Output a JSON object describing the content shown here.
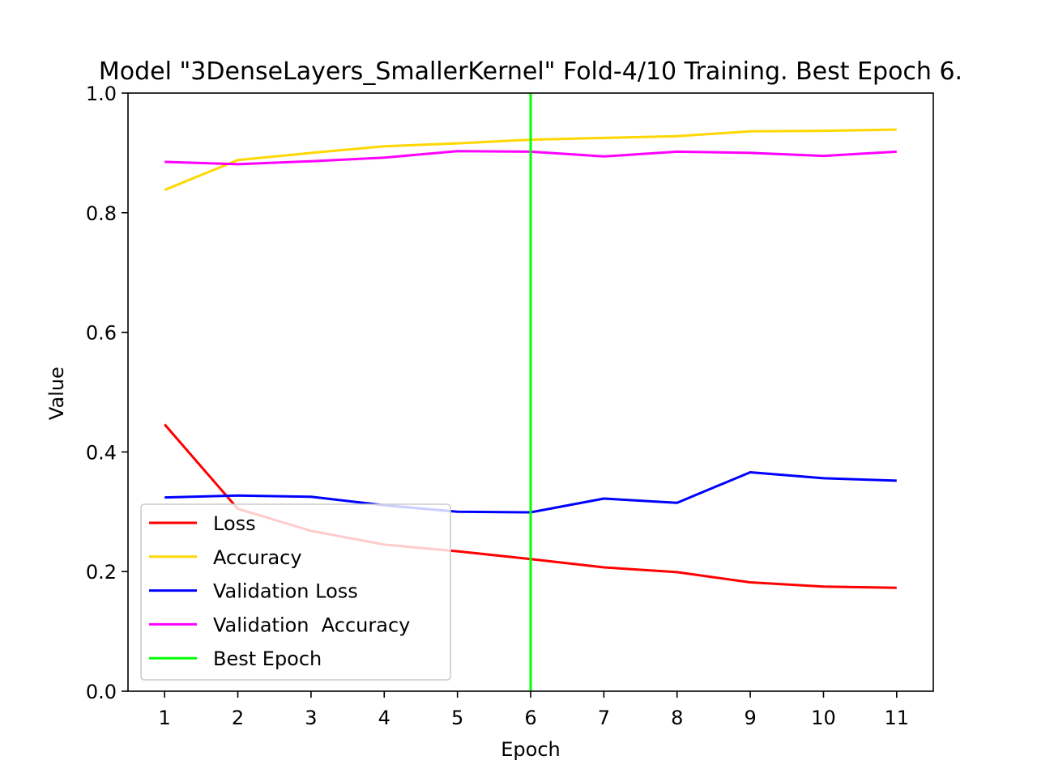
{
  "chart_data": {
    "type": "line",
    "title": "Model \"3DenseLayers_SmallerKernel\" Fold-4/10 Training. Best Epoch 6.",
    "xlabel": "Epoch",
    "ylabel": "Value",
    "x": [
      1,
      2,
      3,
      4,
      5,
      6,
      7,
      8,
      9,
      10,
      11
    ],
    "xticks": [
      "1",
      "2",
      "3",
      "4",
      "5",
      "6",
      "7",
      "8",
      "9",
      "10",
      "11"
    ],
    "xlim": [
      0.5,
      11.5
    ],
    "ylim": [
      0.0,
      1.0
    ],
    "yticks": [
      "0.0",
      "0.2",
      "0.4",
      "0.6",
      "0.8",
      "1.0"
    ],
    "grid": false,
    "legend_position": "lower-left",
    "series": [
      {
        "name": "Loss",
        "color": "#ff0000",
        "values": [
          0.446,
          0.305,
          0.268,
          0.245,
          0.234,
          0.221,
          0.207,
          0.199,
          0.182,
          0.175,
          0.173
        ]
      },
      {
        "name": "Accuracy",
        "color": "#ffd700",
        "values": [
          0.838,
          0.888,
          0.9,
          0.911,
          0.916,
          0.922,
          0.925,
          0.928,
          0.936,
          0.937,
          0.939
        ]
      },
      {
        "name": "Validation Loss",
        "color": "#0000ff",
        "values": [
          0.324,
          0.327,
          0.325,
          0.311,
          0.3,
          0.299,
          0.322,
          0.315,
          0.366,
          0.356,
          0.352
        ]
      },
      {
        "name": "Validation  Accuracy",
        "color": "#ff00ff",
        "values": [
          0.885,
          0.881,
          0.886,
          0.892,
          0.903,
          0.902,
          0.894,
          0.902,
          0.9,
          0.895,
          0.902
        ]
      }
    ],
    "best_epoch": {
      "name": "Best Epoch",
      "x": 6,
      "color": "#00ff00"
    }
  }
}
